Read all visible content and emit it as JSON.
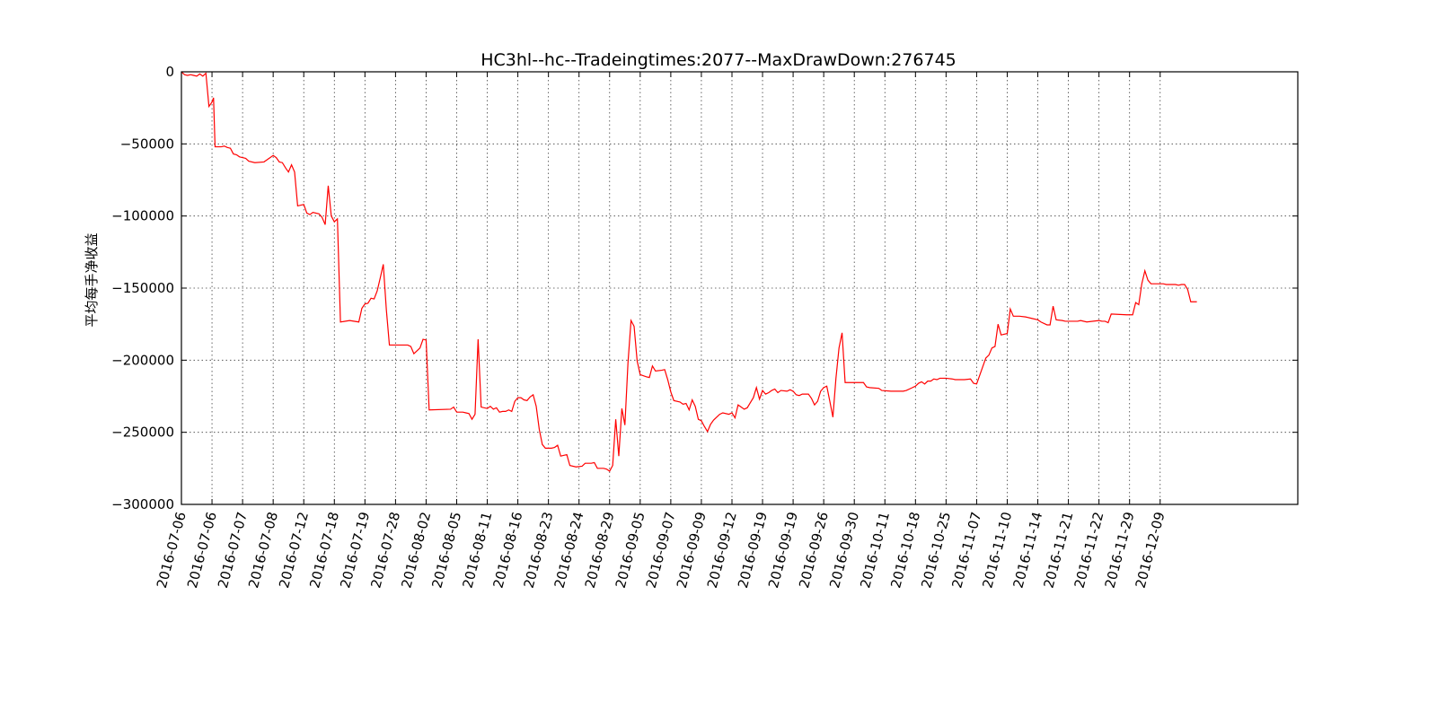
{
  "chart_data": {
    "type": "line",
    "title": "HC3hl--hc--Tradeingtimes:2077--MaxDrawDown:276745",
    "xlabel": "",
    "ylabel": "平均每手净收益",
    "ylim": [
      -300000,
      0
    ],
    "yticks": [
      0,
      -50000,
      -100000,
      -150000,
      -200000,
      -250000,
      -300000
    ],
    "ytick_labels": [
      "0",
      "−50000",
      "−100000",
      "−150000",
      "−200000",
      "−250000",
      "−300000"
    ],
    "x_unit": "trade index",
    "xlim": [
      0,
      365
    ],
    "xticks": [
      0,
      10,
      20,
      30,
      40,
      50,
      60,
      70,
      80,
      90,
      100,
      110,
      120,
      130,
      140,
      150,
      160,
      170,
      180,
      190,
      200,
      210,
      220,
      230,
      240,
      250,
      260,
      270,
      280,
      290,
      300,
      310,
      320
    ],
    "xtick_labels": [
      "2016-07-06",
      "2016-07-06",
      "2016-07-07",
      "2016-07-08",
      "2016-07-12",
      "2016-07-18",
      "2016-07-19",
      "2016-07-28",
      "2016-08-02",
      "2016-08-05",
      "2016-08-11",
      "2016-08-16",
      "2016-08-23",
      "2016-08-24",
      "2016-08-29",
      "2016-09-05",
      "2016-09-07",
      "2016-09-09",
      "2016-09-12",
      "2016-09-19",
      "2016-09-19",
      "2016-09-26",
      "2016-09-30",
      "2016-10-11",
      "2016-10-18",
      "2016-10-25",
      "2016-11-07",
      "2016-11-10",
      "2016-11-14",
      "2016-11-21",
      "2016-11-22",
      "2016-11-29",
      "2016-12-09"
    ],
    "grid": true,
    "legend": "none",
    "series": [
      {
        "color": "#ff0000",
        "points": [
          [
            0,
            0
          ],
          [
            1,
            -2000
          ],
          [
            2,
            -2500
          ],
          [
            3,
            -2000
          ],
          [
            4,
            -2500
          ],
          [
            5,
            -3000
          ],
          [
            6,
            -1500
          ],
          [
            7,
            -3000
          ],
          [
            8,
            -1000
          ],
          [
            9,
            -24000
          ],
          [
            10,
            -21000
          ],
          [
            10.5,
            -18000
          ],
          [
            11,
            -52000
          ],
          [
            13,
            -52000
          ],
          [
            14,
            -51500
          ],
          [
            15,
            -52500
          ],
          [
            16,
            -53000
          ],
          [
            17,
            -57000
          ],
          [
            18,
            -57500
          ],
          [
            19,
            -59000
          ],
          [
            21,
            -60000
          ],
          [
            22,
            -62000
          ],
          [
            24,
            -63000
          ],
          [
            27,
            -62500
          ],
          [
            28,
            -61000
          ],
          [
            29,
            -59500
          ],
          [
            30,
            -58000
          ],
          [
            31,
            -59500
          ],
          [
            32,
            -62500
          ],
          [
            33,
            -63000
          ],
          [
            34,
            -66500
          ],
          [
            35,
            -69500
          ],
          [
            36,
            -64500
          ],
          [
            37,
            -69500
          ],
          [
            38,
            -93000
          ],
          [
            40,
            -92000
          ],
          [
            41,
            -98000
          ],
          [
            42,
            -99000
          ],
          [
            43,
            -97500
          ],
          [
            45,
            -98500
          ],
          [
            46,
            -101000
          ],
          [
            47,
            -106000
          ],
          [
            48,
            -79000
          ],
          [
            49,
            -100000
          ],
          [
            50,
            -104000
          ],
          [
            51,
            -102000
          ],
          [
            52,
            -173500
          ],
          [
            55,
            -172500
          ],
          [
            58,
            -173500
          ],
          [
            59,
            -164000
          ],
          [
            60,
            -161000
          ],
          [
            61,
            -160500
          ],
          [
            62,
            -157000
          ],
          [
            63,
            -157500
          ],
          [
            64,
            -152000
          ],
          [
            65,
            -143000
          ],
          [
            66,
            -133500
          ],
          [
            67,
            -165000
          ],
          [
            68,
            -189500
          ],
          [
            74,
            -189500
          ],
          [
            75,
            -190500
          ],
          [
            76,
            -195500
          ],
          [
            77,
            -193500
          ],
          [
            78,
            -191500
          ],
          [
            79,
            -185500
          ],
          [
            80,
            -186000
          ],
          [
            81,
            -234500
          ],
          [
            88,
            -234000
          ],
          [
            89,
            -232500
          ],
          [
            90,
            -236000
          ],
          [
            92,
            -236000
          ],
          [
            93,
            -236500
          ],
          [
            94,
            -237000
          ],
          [
            95,
            -241000
          ],
          [
            96,
            -237500
          ],
          [
            97,
            -185500
          ],
          [
            98,
            -232500
          ],
          [
            100,
            -233500
          ],
          [
            101,
            -232000
          ],
          [
            102,
            -234000
          ],
          [
            103,
            -233000
          ],
          [
            104,
            -236000
          ],
          [
            105,
            -235500
          ],
          [
            106,
            -235500
          ],
          [
            107,
            -234500
          ],
          [
            108,
            -235500
          ],
          [
            109,
            -228500
          ],
          [
            110,
            -226000
          ],
          [
            111,
            -226000
          ],
          [
            112,
            -227500
          ],
          [
            113,
            -228000
          ],
          [
            114,
            -225500
          ],
          [
            115,
            -224000
          ],
          [
            116,
            -232000
          ],
          [
            117,
            -248000
          ],
          [
            118,
            -258500
          ],
          [
            119,
            -261000
          ],
          [
            121,
            -261000
          ],
          [
            122,
            -260500
          ],
          [
            123,
            -259000
          ],
          [
            124,
            -266500
          ],
          [
            126,
            -265500
          ],
          [
            127,
            -273000
          ],
          [
            129,
            -274000
          ],
          [
            131,
            -273500
          ],
          [
            132,
            -271500
          ],
          [
            134,
            -271500
          ],
          [
            135,
            -271000
          ],
          [
            136,
            -275000
          ],
          [
            138,
            -275000
          ],
          [
            139,
            -275500
          ],
          [
            140,
            -277000
          ],
          [
            141,
            -273000
          ],
          [
            142,
            -241000
          ],
          [
            143,
            -266500
          ],
          [
            144,
            -233500
          ],
          [
            145,
            -245000
          ],
          [
            146,
            -202000
          ],
          [
            147,
            -172500
          ],
          [
            148,
            -176500
          ],
          [
            149,
            -200500
          ],
          [
            150,
            -210000
          ],
          [
            152,
            -211500
          ],
          [
            153,
            -212000
          ],
          [
            154,
            -204000
          ],
          [
            155,
            -207500
          ],
          [
            157,
            -207000
          ],
          [
            158,
            -206500
          ],
          [
            159,
            -213500
          ],
          [
            160,
            -222000
          ],
          [
            161,
            -228000
          ],
          [
            163,
            -229000
          ],
          [
            164,
            -230500
          ],
          [
            165,
            -230000
          ],
          [
            166,
            -234500
          ],
          [
            167,
            -227500
          ],
          [
            168,
            -232000
          ],
          [
            169,
            -241000
          ],
          [
            170,
            -242000
          ],
          [
            171,
            -246000
          ],
          [
            172,
            -249500
          ],
          [
            173,
            -244500
          ],
          [
            174,
            -241500
          ],
          [
            175,
            -239500
          ],
          [
            176,
            -237500
          ],
          [
            177,
            -236500
          ],
          [
            179,
            -237500
          ],
          [
            180,
            -236500
          ],
          [
            181,
            -240000
          ],
          [
            182,
            -231000
          ],
          [
            183,
            -232500
          ],
          [
            184,
            -234000
          ],
          [
            185,
            -233000
          ],
          [
            186,
            -229500
          ],
          [
            187,
            -226000
          ],
          [
            188,
            -219000
          ],
          [
            189,
            -227000
          ],
          [
            190,
            -221000
          ],
          [
            191,
            -223500
          ],
          [
            192,
            -222500
          ],
          [
            193,
            -221000
          ],
          [
            194,
            -220000
          ],
          [
            195,
            -222500
          ],
          [
            196,
            -221000
          ],
          [
            198,
            -221500
          ],
          [
            199,
            -220500
          ],
          [
            200,
            -221500
          ],
          [
            201,
            -224000
          ],
          [
            202,
            -224500
          ],
          [
            203,
            -223500
          ],
          [
            205,
            -223500
          ],
          [
            206,
            -226500
          ],
          [
            207,
            -231000
          ],
          [
            208,
            -228500
          ],
          [
            209,
            -221500
          ],
          [
            210,
            -219000
          ],
          [
            211,
            -218000
          ],
          [
            212,
            -228500
          ],
          [
            213,
            -239500
          ],
          [
            214,
            -212500
          ],
          [
            215,
            -191500
          ],
          [
            216,
            -181000
          ],
          [
            217,
            -215500
          ],
          [
            221,
            -215500
          ],
          [
            223,
            -215500
          ],
          [
            224,
            -218500
          ],
          [
            225,
            -219000
          ],
          [
            228,
            -219500
          ],
          [
            229,
            -221000
          ],
          [
            232,
            -221500
          ],
          [
            236,
            -221500
          ],
          [
            237,
            -221000
          ],
          [
            239,
            -219000
          ],
          [
            240,
            -218000
          ],
          [
            241,
            -216000
          ],
          [
            242,
            -215000
          ],
          [
            243,
            -216500
          ],
          [
            244,
            -214500
          ],
          [
            245,
            -214500
          ],
          [
            246,
            -213000
          ],
          [
            247,
            -213500
          ],
          [
            248,
            -212500
          ],
          [
            250,
            -212500
          ],
          [
            252,
            -213000
          ],
          [
            253,
            -213500
          ],
          [
            256,
            -213500
          ],
          [
            258,
            -213000
          ],
          [
            259,
            -216000
          ],
          [
            260,
            -216500
          ],
          [
            262,
            -204500
          ],
          [
            263,
            -198500
          ],
          [
            264,
            -196500
          ],
          [
            265,
            -191500
          ],
          [
            266,
            -190500
          ],
          [
            267,
            -175000
          ],
          [
            268,
            -182500
          ],
          [
            270,
            -181500
          ],
          [
            271,
            -164500
          ],
          [
            272,
            -169500
          ],
          [
            274,
            -169500
          ],
          [
            276,
            -170000
          ],
          [
            278,
            -171000
          ],
          [
            280,
            -172000
          ],
          [
            281,
            -173500
          ],
          [
            283,
            -175500
          ],
          [
            284,
            -175500
          ],
          [
            285,
            -162500
          ],
          [
            286,
            -172000
          ],
          [
            288,
            -172500
          ],
          [
            289,
            -173000
          ],
          [
            293,
            -173000
          ],
          [
            294,
            -172500
          ],
          [
            296,
            -173500
          ],
          [
            300,
            -172500
          ],
          [
            301,
            -173000
          ],
          [
            302,
            -173000
          ],
          [
            303,
            -174000
          ],
          [
            304,
            -168000
          ],
          [
            309,
            -168500
          ],
          [
            311,
            -168500
          ],
          [
            312,
            -160000
          ],
          [
            313,
            -161500
          ],
          [
            314,
            -147000
          ],
          [
            315,
            -138000
          ],
          [
            316,
            -144500
          ],
          [
            317,
            -147000
          ],
          [
            320,
            -147000
          ],
          [
            321,
            -147000
          ],
          [
            322,
            -147500
          ],
          [
            325,
            -147500
          ],
          [
            326,
            -148000
          ],
          [
            327,
            -147500
          ],
          [
            328,
            -147500
          ],
          [
            329,
            -151000
          ],
          [
            330,
            -159500
          ],
          [
            332,
            -159500
          ]
        ]
      }
    ]
  }
}
